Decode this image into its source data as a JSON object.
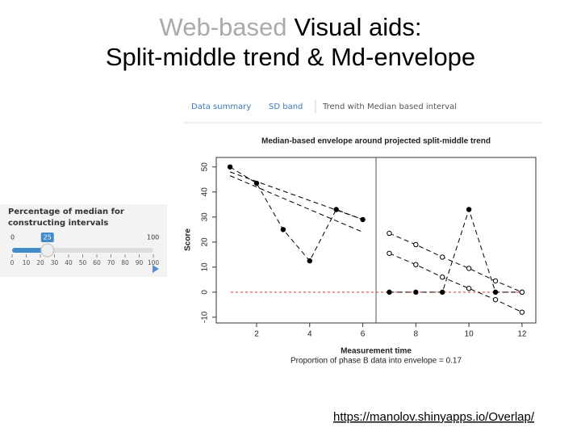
{
  "slide": {
    "title_grey": "Web-based",
    "title_rest": "Visual aids:",
    "subtitle": "Split-middle trend & Md-envelope",
    "link": "https://manolov.shinyapps.io/Overlap/"
  },
  "tabs": [
    "Data summary",
    "SD band",
    "Trend with Median based interval"
  ],
  "slider": {
    "label_1": "Percentage of median for",
    "label_2": "constructing intervals",
    "min": 0,
    "max": 100,
    "value": 25,
    "ticks": [
      0,
      10,
      20,
      30,
      40,
      50,
      60,
      70,
      80,
      90,
      100
    ]
  },
  "chart_data": {
    "type": "line",
    "title": "Median-based envelope around projected split-middle trend",
    "x_label": "Measurement time",
    "y_label": "Score",
    "caption": "Proportion of phase B data into envelope = 0.17",
    "x": [
      1,
      2,
      3,
      4,
      5,
      6,
      7,
      8,
      9,
      10,
      11,
      12
    ],
    "series": [
      {
        "color": "#000000",
        "dash": true,
        "marker": "filled",
        "values": [
          50,
          43.5,
          25,
          12.5,
          33,
          29,
          null,
          null,
          null,
          null,
          null,
          null
        ]
      },
      {
        "color": "#000000",
        "dash": true,
        "marker": "filled",
        "values": [
          null,
          null,
          null,
          null,
          null,
          null,
          0,
          0,
          0,
          33,
          0,
          0
        ]
      },
      {
        "color": "#000000",
        "dash": true,
        "marker": "none",
        "values": [
          48,
          44.2,
          40.4,
          36.6,
          32.8,
          29,
          null,
          null,
          null,
          null,
          null,
          null
        ]
      },
      {
        "color": "#000000",
        "dash": true,
        "marker": "none",
        "values": [
          46.5,
          42,
          37.5,
          33,
          28.5,
          24,
          null,
          null,
          null,
          null,
          null,
          null
        ]
      },
      {
        "color": "#000000",
        "dash": true,
        "marker": "open",
        "values": [
          null,
          null,
          null,
          null,
          null,
          null,
          23.5,
          19,
          14,
          9.5,
          4.5,
          0
        ]
      },
      {
        "color": "#000000",
        "dash": true,
        "marker": "open",
        "values": [
          null,
          null,
          null,
          null,
          null,
          null,
          15.5,
          11,
          6,
          1.5,
          -3,
          -8
        ]
      }
    ],
    "phase_change": 6.5,
    "reference_line": 0,
    "reference_color": "#e03030",
    "xlim": [
      0.48,
      12.52
    ],
    "ylim": [
      -12.3,
      53.8
    ],
    "xticks": [
      2,
      4,
      6,
      8,
      10,
      12
    ],
    "yticks": [
      -10,
      0,
      10,
      20,
      30,
      40,
      50
    ]
  }
}
